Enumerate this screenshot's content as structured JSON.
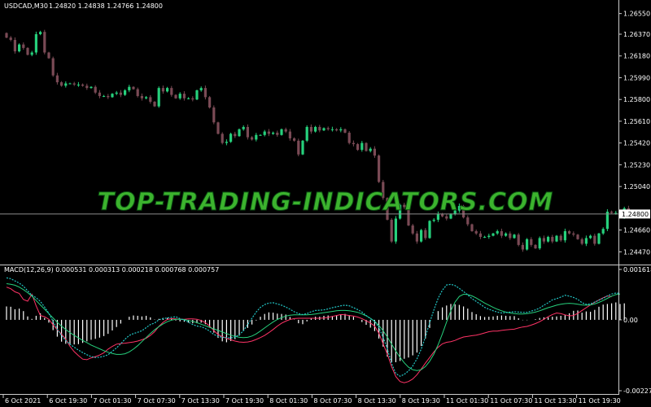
{
  "header": {
    "symbol_label": "USDCAD,M30",
    "ohlc_label": "1.24820 1.24838 1.24766 1.24800"
  },
  "watermark": "TOP-TRADING-INDICATORS.COM",
  "colors": {
    "background": "#000000",
    "bull": "#26d07c",
    "bear": "#7a4a55",
    "current_price_line": "#8c8c8c",
    "histogram": "#ffffff",
    "macd_line": "#26d07c",
    "fast_line": "#ff3366",
    "signal_line": "#22c7c7",
    "watermark": "#3cb32e"
  },
  "chart_data": [
    {
      "type": "candlestick",
      "name": "USDCAD,M30",
      "ylim": [
        1.2438,
        1.2664
      ],
      "y_ticks": [
        "1.26550",
        "1.26370",
        "1.26180",
        "1.25990",
        "1.25800",
        "1.25610",
        "1.25420",
        "1.25230",
        "1.25040",
        "1.24660",
        "1.24470"
      ],
      "current_price": "1.24800",
      "x_ticks": [
        "6 Oct 2021",
        "6 Oct 19:30",
        "7 Oct 01:30",
        "7 Oct 07:30",
        "7 Oct 13:30",
        "7 Oct 19:30",
        "8 Oct 01:30",
        "8 Oct 07:30",
        "8 Oct 13:30",
        "8 Oct 19:30",
        "11 Oct 01:30",
        "11 Oct 07:30",
        "11 Oct 13:30",
        "11 Oct 19:30"
      ],
      "close": [
        1.2634,
        1.2632,
        1.2622,
        1.2628,
        1.2625,
        1.2619,
        1.2621,
        1.2637,
        1.2639,
        1.2621,
        1.2616,
        1.2601,
        1.2595,
        1.2592,
        1.2594,
        1.2594,
        1.2593,
        1.2593,
        1.2592,
        1.259,
        1.2591,
        1.2586,
        1.2583,
        1.2583,
        1.2582,
        1.2585,
        1.2586,
        1.2584,
        1.2588,
        1.2591,
        1.2589,
        1.2583,
        1.2581,
        1.2582,
        1.2578,
        1.2574,
        1.259,
        1.2587,
        1.259,
        1.2584,
        1.2581,
        1.2585,
        1.2581,
        1.2581,
        1.258,
        1.2588,
        1.259,
        1.2582,
        1.2573,
        1.256,
        1.255,
        1.2542,
        1.2543,
        1.255,
        1.2548,
        1.2554,
        1.2556,
        1.2547,
        1.2545,
        1.2549,
        1.2549,
        1.2552,
        1.255,
        1.2551,
        1.2549,
        1.2554,
        1.2552,
        1.2546,
        1.2544,
        1.2532,
        1.2544,
        1.2556,
        1.2552,
        1.2556,
        1.2553,
        1.2555,
        1.2554,
        1.2554,
        1.2553,
        1.2554,
        1.2551,
        1.2542,
        1.2541,
        1.2536,
        1.2542,
        1.2535,
        1.2537,
        1.2531,
        1.2508,
        1.2494,
        1.2475,
        1.2456,
        1.2476,
        1.2488,
        1.2486,
        1.247,
        1.2463,
        1.2456,
        1.2466,
        1.2459,
        1.2474,
        1.2475,
        1.248,
        1.2478,
        1.2476,
        1.248,
        1.2483,
        1.2487,
        1.2477,
        1.2471,
        1.2465,
        1.2463,
        1.246,
        1.246,
        1.2461,
        1.2463,
        1.2465,
        1.2461,
        1.2463,
        1.2459,
        1.2462,
        1.2453,
        1.2449,
        1.2458,
        1.2453,
        1.245,
        1.2459,
        1.2456,
        1.246,
        1.2456,
        1.2461,
        1.2457,
        1.2465,
        1.2463,
        1.2462,
        1.2458,
        1.2454,
        1.2459,
        1.2461,
        1.2454,
        1.2463,
        1.2467,
        1.2482,
        1.2481,
        1.2481,
        1.2477,
        1.2485,
        1.248
      ]
    },
    {
      "type": "line",
      "name": "MACD(12,26,9) 0.000531 0.000313 0.000218 0.000768 0.000757",
      "ylim": [
        -0.002275,
        0.001618
      ],
      "y_ticks": [
        "0.001618",
        "0.00",
        "-0.002275"
      ],
      "histogram": [
        0.00043,
        0.00042,
        0.00034,
        0.00036,
        0.00028,
        0.00011,
        3e-05,
        0.00013,
        0.00021,
        6e-05,
        -9e-05,
        -0.00033,
        -0.00054,
        -0.0007,
        -0.00077,
        -0.0008,
        -0.00079,
        -0.00078,
        -0.00074,
        -0.00069,
        -0.00064,
        -0.00061,
        -0.00057,
        -0.00052,
        -0.00045,
        -0.00034,
        -0.00023,
        -0.00012,
        0.0,
        0.0001,
        0.00014,
        0.00013,
        0.00011,
        0.00013,
        8e-05,
        1e-05,
        3e-05,
        6e-05,
        6e-05,
        4e-05,
        -2e-05,
        -5e-05,
        -6e-05,
        -9e-05,
        -0.00011,
        -0.00011,
        -9e-05,
        -0.00014,
        -0.00025,
        -0.00041,
        -0.00058,
        -0.00069,
        -0.00072,
        -0.00068,
        -0.00062,
        -0.00051,
        -0.00036,
        -0.00026,
        -0.00015,
        -2e-05,
        0.0001,
        0.00019,
        0.00024,
        0.00023,
        0.0002,
        0.00019,
        0.00017,
        9e-05,
        1e-05,
        -0.00011,
        -0.00014,
        -5e-05,
        5e-05,
        0.0001,
        0.0001,
        0.00013,
        0.00014,
        0.00012,
        0.00015,
        0.00018,
        0.00019,
        0.00015,
        0.0001,
        0.0,
        -7e-05,
        -0.00016,
        -0.00025,
        -0.00036,
        -0.0006,
        -0.00086,
        -0.00118,
        -0.00136,
        -0.00136,
        -0.00132,
        -0.00125,
        -0.00121,
        -0.00114,
        -0.00105,
        -0.00084,
        -0.0006,
        -0.00026,
        0.0,
        0.00028,
        0.0004,
        0.00046,
        0.00051,
        0.0005,
        0.00048,
        0.00043,
        0.00036,
        0.00025,
        0.00018,
        0.00012,
        9e-05,
        0.0001,
        0.00011,
        0.00013,
        0.00014,
        0.00013,
        0.00012,
        0.00012,
        5e-05,
        -1e-05,
        -1e-05,
        0.0,
        2e-05,
        6e-05,
        8e-05,
        8e-05,
        0.0001,
        0.00011,
        0.00013,
        0.00016,
        0.00021,
        0.00029,
        0.0003,
        0.00023,
        0.00027,
        0.00026,
        0.00032,
        0.00042,
        0.00049,
        0.00051,
        0.00053,
        0.00056,
        0.00051,
        0.00053
      ],
      "series": [
        {
          "role": "signal",
          "color": "#22c7c7",
          "values": [
            0.00135,
            0.00132,
            0.00125,
            0.00118,
            0.00108,
            0.00093,
            0.00079,
            0.00071,
            0.00059,
            0.00041,
            0.00021,
            -5e-05,
            -0.0003,
            -0.00051,
            -0.00066,
            -0.00078,
            -0.00088,
            -0.00097,
            -0.00105,
            -0.00112,
            -0.00118,
            -0.00121,
            -0.0012,
            -0.00117,
            -0.00112,
            -0.00101,
            -0.0009,
            -0.00077,
            -0.00062,
            -0.0005,
            -0.00044,
            -0.0004,
            -0.00035,
            -0.00025,
            -0.00015,
            -0.0001,
            0.0,
            4e-05,
            6e-05,
            8e-05,
            0.0001,
            4e-05,
            -1e-05,
            -7e-05,
            -0.00015,
            -0.0002,
            -0.00022,
            -0.00028,
            -0.00036,
            -0.00047,
            -0.00053,
            -0.00056,
            -0.00057,
            -0.00058,
            -0.00055,
            -0.00048,
            -0.00035,
            -0.00015,
            5e-05,
            0.00025,
            0.0004,
            0.00049,
            0.00054,
            0.00055,
            0.00051,
            0.00047,
            0.00041,
            0.00034,
            0.00026,
            0.0002,
            0.00017,
            0.0002,
            0.00026,
            0.0003,
            0.00031,
            0.00032,
            0.00035,
            0.00039,
            0.00042,
            0.00045,
            0.00047,
            0.00045,
            0.00039,
            0.00033,
            0.00025,
            0.00014,
            4e-05,
            -4e-05,
            -0.00025,
            -0.00055,
            -0.00093,
            -0.0014,
            -0.00172,
            -0.00181,
            -0.00175,
            -0.00164,
            -0.00148,
            -0.00125,
            -0.00094,
            -0.00055,
            -9e-05,
            0.00032,
            0.00069,
            0.00095,
            0.00112,
            0.00114,
            0.0011,
            0.00101,
            0.00091,
            0.0008,
            0.00068,
            0.00059,
            0.0005,
            0.0004,
            0.00034,
            0.00029,
            0.00025,
            0.00022,
            0.00023,
            0.00025,
            0.00026,
            0.00025,
            0.00024,
            0.00024,
            0.00028,
            0.00032,
            0.00038,
            0.00047,
            0.00055,
            0.00064,
            0.00068,
            0.00073,
            0.00079,
            0.00076,
            0.00072,
            0.00066,
            0.00055,
            0.0005,
            0.00051,
            0.00057,
            0.00063,
            0.00069,
            0.00077,
            0.00083,
            0.00086,
            0.00085
          ]
        },
        {
          "role": "macd",
          "color": "#26d07c",
          "values": [
            0.00116,
            0.00114,
            0.00111,
            0.00105,
            0.00097,
            0.00087,
            0.00076,
            0.00062,
            0.00048,
            0.00034,
            0.0002,
            6e-05,
            -8e-05,
            -0.0002,
            -0.00031,
            -0.00041,
            -0.0005,
            -0.00058,
            -0.00066,
            -0.00073,
            -0.00081,
            -0.00087,
            -0.00093,
            -0.00099,
            -0.00104,
            -0.00108,
            -0.00111,
            -0.00111,
            -0.00109,
            -0.00103,
            -0.00094,
            -0.00083,
            -0.0007,
            -0.00057,
            -0.00044,
            -0.00032,
            -0.00022,
            -0.00013,
            -6e-05,
            -1e-05,
            2e-05,
            2e-05,
            1e-05,
            -2e-05,
            -5e-05,
            -9e-05,
            -0.00014,
            -0.00019,
            -0.00024,
            -0.00029,
            -0.00034,
            -0.00039,
            -0.00044,
            -0.00049,
            -0.00053,
            -0.00056,
            -0.00057,
            -0.00056,
            -0.00052,
            -0.00045,
            -0.00036,
            -0.00026,
            -0.00016,
            -7e-05,
            1e-05,
            7e-05,
            0.00012,
            0.00015,
            0.00016,
            0.00016,
            0.00016,
            0.00016,
            0.00017,
            0.00019,
            0.00021,
            0.00023,
            0.00025,
            0.00027,
            0.00029,
            0.0003,
            0.0003,
            0.00029,
            0.00027,
            0.00024,
            0.00019,
            0.00013,
            5e-05,
            -5e-05,
            -0.00018,
            -0.00035,
            -0.00055,
            -0.00078,
            -0.001,
            -0.0012,
            -0.00138,
            -0.00152,
            -0.0016,
            -0.00163,
            -0.0016,
            -0.0015,
            -0.00133,
            -0.0011,
            -0.0008,
            -0.00045,
            -7e-05,
            0.00029,
            0.00057,
            0.00075,
            0.00082,
            0.00081,
            0.00077,
            0.0007,
            0.00062,
            0.00054,
            0.00047,
            0.0004,
            0.00034,
            0.00029,
            0.00025,
            0.00022,
            0.0002,
            0.00019,
            0.00019,
            0.0002,
            0.00022,
            0.00025,
            0.00029,
            0.00034,
            0.00039,
            0.00043,
            0.00047,
            0.0005,
            0.00052,
            0.00053,
            0.00052,
            0.0005,
            0.00048,
            0.00047,
            0.00048,
            0.00051,
            0.00056,
            0.00062,
            0.00069,
            0.00076,
            0.00081,
            0.00083
          ]
        },
        {
          "role": "fast",
          "color": "#ff3366",
          "values": [
            0.00105,
            0.001,
            0.0009,
            0.00085,
            0.00065,
            0.0006,
            0.00082,
            0.00045,
            0.00014,
            0.0001,
            2e-05,
            -0.00016,
            -0.00032,
            -0.00046,
            -0.00062,
            -0.00085,
            -0.00102,
            -0.00115,
            -0.00126,
            -0.00128,
            -0.00122,
            -0.00118,
            -0.00113,
            -0.00106,
            -0.00094,
            -0.00085,
            -0.00078,
            -0.00076,
            -0.00075,
            -0.00073,
            -0.00071,
            -0.00068,
            -0.00064,
            -0.00059,
            -0.0005,
            -0.00038,
            -0.00021,
            -8e-05,
            1e-05,
            4e-05,
            3e-05,
            2e-05,
            2e-05,
            3e-05,
            3e-05,
            2e-05,
            -2e-05,
            -9e-05,
            -0.0002,
            -0.00035,
            -0.00047,
            -0.00054,
            -0.00059,
            -0.00064,
            -0.00068,
            -0.00071,
            -0.00072,
            -0.00071,
            -0.00068,
            -0.00063,
            -0.00057,
            -0.0005,
            -0.00041,
            -0.00031,
            -0.0002,
            -0.00011,
            -4e-05,
            1e-05,
            4e-05,
            5e-05,
            5e-05,
            5e-05,
            5e-05,
            5e-05,
            5e-05,
            6e-05,
            8e-05,
            0.00011,
            0.00014,
            0.00017,
            0.00016,
            0.00014,
            0.00012,
            9e-05,
            4e-05,
            -3e-05,
            -0.0001,
            -0.0002,
            -0.00043,
            -0.00077,
            -0.0011,
            -0.0015,
            -0.00182,
            -0.00198,
            -0.00202,
            -0.00198,
            -0.0019,
            -0.00176,
            -0.00158,
            -0.00139,
            -0.00121,
            -0.00103,
            -0.00088,
            -0.00077,
            -0.00072,
            -0.0007,
            -0.00066,
            -0.0006,
            -0.00055,
            -0.00053,
            -0.00051,
            -0.00049,
            -0.00046,
            -0.00042,
            -0.00038,
            -0.00036,
            -0.00036,
            -0.00034,
            -0.00032,
            -0.00031,
            -0.0003,
            -0.00026,
            -0.00023,
            -0.00021,
            -0.00017,
            -0.00012,
            -6e-05,
            2e-05,
            0.0001,
            0.00017,
            0.00022,
            0.0002,
            0.00016,
            0.00013,
            0.00014,
            0.00021,
            0.0003,
            0.00039,
            0.00048,
            0.00056,
            0.00064,
            0.00071,
            0.00077,
            0.00074
          ]
        }
      ]
    }
  ]
}
